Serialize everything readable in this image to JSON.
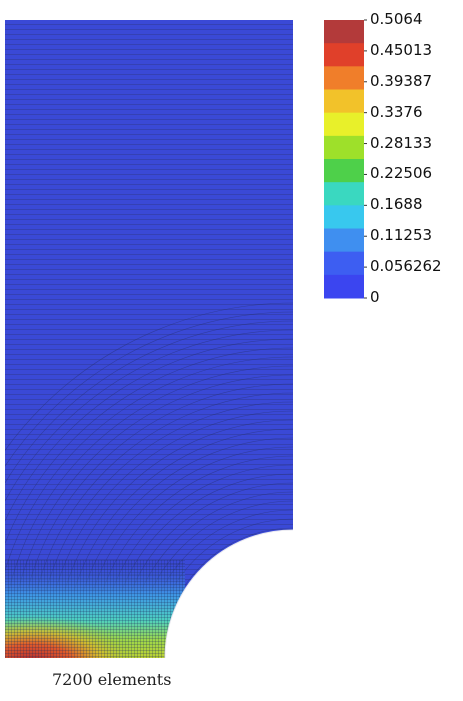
{
  "figure": {
    "caption": "7200 elements"
  },
  "colorbar": {
    "ticks": [
      "0.5064",
      "0.45013",
      "0.39387",
      "0.3376",
      "0.28133",
      "0.22506",
      "0.1688",
      "0.11253",
      "0.056262",
      "0"
    ],
    "colors": [
      "#b33a3a",
      "#e0402a",
      "#f07e2a",
      "#f2c22a",
      "#e8f02a",
      "#9ee02a",
      "#4ed04a",
      "#3ad8c0",
      "#38c8ee",
      "#3f8ff0",
      "#3d5ef2",
      "#3b45f0"
    ]
  },
  "mesh": {
    "element_count": 7200,
    "base_color": "#3a49d6",
    "hole": "quarter-circle notch at bottom-right"
  }
}
